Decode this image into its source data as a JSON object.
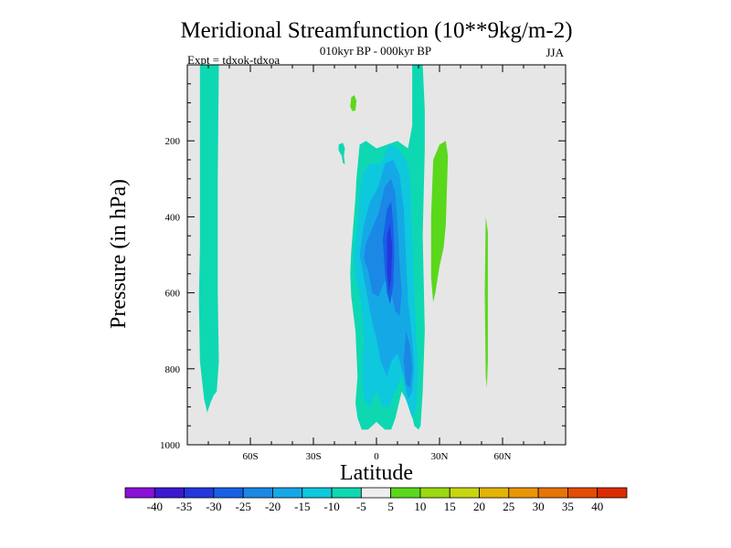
{
  "chart_data": {
    "type": "heatmap",
    "title": "Meridional Streamfunction (10**9kg/m-2)",
    "subtitle": "010kyr BP - 000kyr BP",
    "left_label": "Expt = tdxok-tdxoa",
    "season": "JJA",
    "xlabel": "Latitude",
    "ylabel": "Pressure (in hPa)",
    "xlim": [
      -90,
      90
    ],
    "ylim": [
      1000,
      0
    ],
    "x_ticks": [
      -60,
      -30,
      0,
      30,
      60
    ],
    "x_tick_labels": [
      "60S",
      "30S",
      "0",
      "30N",
      "60N"
    ],
    "y_ticks": [
      200,
      400,
      600,
      800,
      1000
    ],
    "y_tick_labels": [
      "200",
      "400",
      "600",
      "800",
      "1000"
    ],
    "grid": false,
    "background_color": "#e6e6e6",
    "colorbar": {
      "position": "bottom",
      "levels": [
        -40,
        -35,
        -30,
        -25,
        -20,
        -15,
        -10,
        -5,
        5,
        10,
        15,
        20,
        25,
        30,
        35,
        40
      ],
      "labels": [
        "-40",
        "-35",
        "-30",
        "-25",
        "-20",
        "-15",
        "-10",
        "-5",
        "5",
        "10",
        "15",
        "20",
        "25",
        "30",
        "35",
        "40"
      ],
      "colors": [
        "#8a10d8",
        "#3c18d2",
        "#2538dc",
        "#1760e6",
        "#1a88e4",
        "#15a8e6",
        "#0ec8de",
        "#0ed8b2",
        "#eeeeee",
        "#5ad81c",
        "#9ad812",
        "#c8d610",
        "#e2b408",
        "#e89606",
        "#e67406",
        "#e24c04",
        "#dc2c02"
      ]
    },
    "contour_regions": [
      {
        "name": "neg-5-highlat-south-upper",
        "level_range": [
          -10,
          -5
        ],
        "color": "#0ed8b2",
        "points": [
          [
            -84,
            0
          ],
          [
            -84,
            480
          ],
          [
            -84.5,
            620
          ],
          [
            -84,
            780
          ],
          [
            -82,
            880
          ],
          [
            -80.5,
            915
          ],
          [
            -79,
            890
          ],
          [
            -77.5,
            870
          ],
          [
            -76,
            860
          ],
          [
            -75,
            780
          ],
          [
            -75.5,
            600
          ],
          [
            -75.5,
            300
          ],
          [
            -75,
            0
          ]
        ]
      },
      {
        "name": "neg-5-small-blob",
        "level_range": [
          -10,
          -5
        ],
        "color": "#0ed8b2",
        "points": [
          [
            -18,
            210
          ],
          [
            -16,
            205
          ],
          [
            -15,
            220
          ],
          [
            -15.5,
            240
          ],
          [
            -15,
            262
          ],
          [
            -16,
            258
          ],
          [
            -16.5,
            240
          ],
          [
            -18,
            225
          ]
        ]
      },
      {
        "name": "neg-5-tropical-column",
        "level_range": [
          -10,
          -5
        ],
        "color": "#0ed8b2",
        "points": [
          [
            -10,
            700
          ],
          [
            -12,
            610
          ],
          [
            -12.5,
            550
          ],
          [
            -12,
            490
          ],
          [
            -11,
            420
          ],
          [
            -10,
            350
          ],
          [
            -9.5,
            300
          ],
          [
            -8,
            210
          ],
          [
            -5,
            200
          ],
          [
            0,
            220
          ],
          [
            5,
            210
          ],
          [
            10,
            200
          ],
          [
            15,
            220
          ],
          [
            17,
            160
          ],
          [
            17,
            0
          ],
          [
            22,
            0
          ],
          [
            23,
            120
          ],
          [
            23,
            220
          ],
          [
            22,
            450
          ],
          [
            23,
            700
          ],
          [
            22,
            860
          ],
          [
            21,
            950
          ],
          [
            20,
            960
          ],
          [
            18,
            950
          ],
          [
            16,
            900
          ],
          [
            12,
            860
          ],
          [
            9,
            930
          ],
          [
            7,
            960
          ],
          [
            4,
            960
          ],
          [
            0,
            940
          ],
          [
            -4,
            960
          ],
          [
            -7,
            960
          ],
          [
            -9,
            930
          ],
          [
            -10,
            890
          ],
          [
            -9,
            820
          ]
        ]
      },
      {
        "name": "neg-10-tropical",
        "level_range": [
          -15,
          -10
        ],
        "color": "#0ec8de",
        "points": [
          [
            -8,
            600
          ],
          [
            -10,
            560
          ],
          [
            -11,
            500
          ],
          [
            -9,
            420
          ],
          [
            -8,
            330
          ],
          [
            -6,
            280
          ],
          [
            -3,
            260
          ],
          [
            2,
            260
          ],
          [
            6,
            210
          ],
          [
            10,
            220
          ],
          [
            14,
            250
          ],
          [
            16,
            300
          ],
          [
            17,
            450
          ],
          [
            18,
            600
          ],
          [
            19,
            720
          ],
          [
            20,
            800
          ],
          [
            19,
            900
          ],
          [
            17,
            930
          ],
          [
            14,
            880
          ],
          [
            12,
            820
          ],
          [
            9,
            860
          ],
          [
            6,
            900
          ],
          [
            3,
            900
          ],
          [
            0,
            860
          ],
          [
            -3,
            900
          ],
          [
            -6,
            880
          ],
          [
            -7,
            800
          ],
          [
            -6,
            720
          ]
        ]
      },
      {
        "name": "neg-15-tropical",
        "level_range": [
          -20,
          -15
        ],
        "color": "#15a8e6",
        "points": [
          [
            -6,
            560
          ],
          [
            -8,
            500
          ],
          [
            -6,
            420
          ],
          [
            -3,
            360
          ],
          [
            1,
            320
          ],
          [
            4,
            260
          ],
          [
            8,
            250
          ],
          [
            11,
            290
          ],
          [
            13,
            380
          ],
          [
            14,
            500
          ],
          [
            15,
            620
          ],
          [
            17,
            720
          ],
          [
            18,
            800
          ],
          [
            17,
            860
          ],
          [
            15,
            880
          ],
          [
            13,
            820
          ],
          [
            10,
            760
          ],
          [
            7,
            780
          ],
          [
            5,
            820
          ],
          [
            2,
            780
          ],
          [
            0,
            720
          ],
          [
            -2,
            680
          ],
          [
            -4,
            620
          ]
        ]
      },
      {
        "name": "neg-20-tropical",
        "level_range": [
          -25,
          -20
        ],
        "color": "#1a88e4",
        "points": [
          [
            -4,
            540
          ],
          [
            -6,
            510
          ],
          [
            -5,
            470
          ],
          [
            -2,
            430
          ],
          [
            1,
            390
          ],
          [
            4,
            320
          ],
          [
            7,
            300
          ],
          [
            9,
            340
          ],
          [
            10,
            420
          ],
          [
            11,
            520
          ],
          [
            12,
            600
          ],
          [
            11,
            660
          ],
          [
            9,
            650
          ],
          [
            7,
            600
          ],
          [
            5,
            560
          ],
          [
            3,
            580
          ],
          [
            1,
            610
          ],
          [
            -2,
            600
          ]
        ]
      },
      {
        "name": "neg-20-deep",
        "level_range": [
          -25,
          -20
        ],
        "color": "#1a88e4",
        "points": [
          [
            14,
            700
          ],
          [
            16,
            740
          ],
          [
            17,
            800
          ],
          [
            16,
            850
          ],
          [
            14,
            840
          ],
          [
            13,
            780
          ]
        ]
      },
      {
        "name": "neg-25-core",
        "level_range": [
          -30,
          -25
        ],
        "color": "#1760e6",
        "points": [
          [
            3,
            460
          ],
          [
            5,
            380
          ],
          [
            7,
            360
          ],
          [
            8,
            420
          ],
          [
            8.5,
            500
          ],
          [
            8,
            580
          ],
          [
            6.5,
            630
          ],
          [
            5,
            600
          ],
          [
            4,
            540
          ]
        ]
      },
      {
        "name": "neg-30-core",
        "level_range": [
          -35,
          -30
        ],
        "color": "#2538dc",
        "points": [
          [
            5,
            450
          ],
          [
            6.5,
            420
          ],
          [
            7.5,
            480
          ],
          [
            7,
            560
          ],
          [
            6,
            600
          ],
          [
            5,
            540
          ]
        ]
      },
      {
        "name": "pos-5-small-blob",
        "level_range": [
          5,
          10
        ],
        "color": "#5ad81c",
        "points": [
          [
            -12,
            85
          ],
          [
            -10.5,
            80
          ],
          [
            -9.5,
            95
          ],
          [
            -10,
            120
          ],
          [
            -11.5,
            122
          ],
          [
            -12.5,
            110
          ]
        ]
      },
      {
        "name": "pos-5-subtropic-north",
        "level_range": [
          5,
          10
        ],
        "color": "#5ad81c",
        "points": [
          [
            27,
            250
          ],
          [
            30,
            210
          ],
          [
            33,
            200
          ],
          [
            34,
            240
          ],
          [
            33,
            420
          ],
          [
            32,
            480
          ],
          [
            30,
            530
          ],
          [
            28,
            600
          ],
          [
            27,
            625
          ],
          [
            26,
            560
          ],
          [
            26,
            400
          ]
        ]
      },
      {
        "name": "pos-5-midlat-north",
        "level_range": [
          5,
          10
        ],
        "color": "#5ad81c",
        "points": [
          [
            52,
            400
          ],
          [
            53,
            440
          ],
          [
            53,
            780
          ],
          [
            52.5,
            850
          ],
          [
            52,
            820
          ],
          [
            51.5,
            600
          ]
        ]
      }
    ]
  }
}
